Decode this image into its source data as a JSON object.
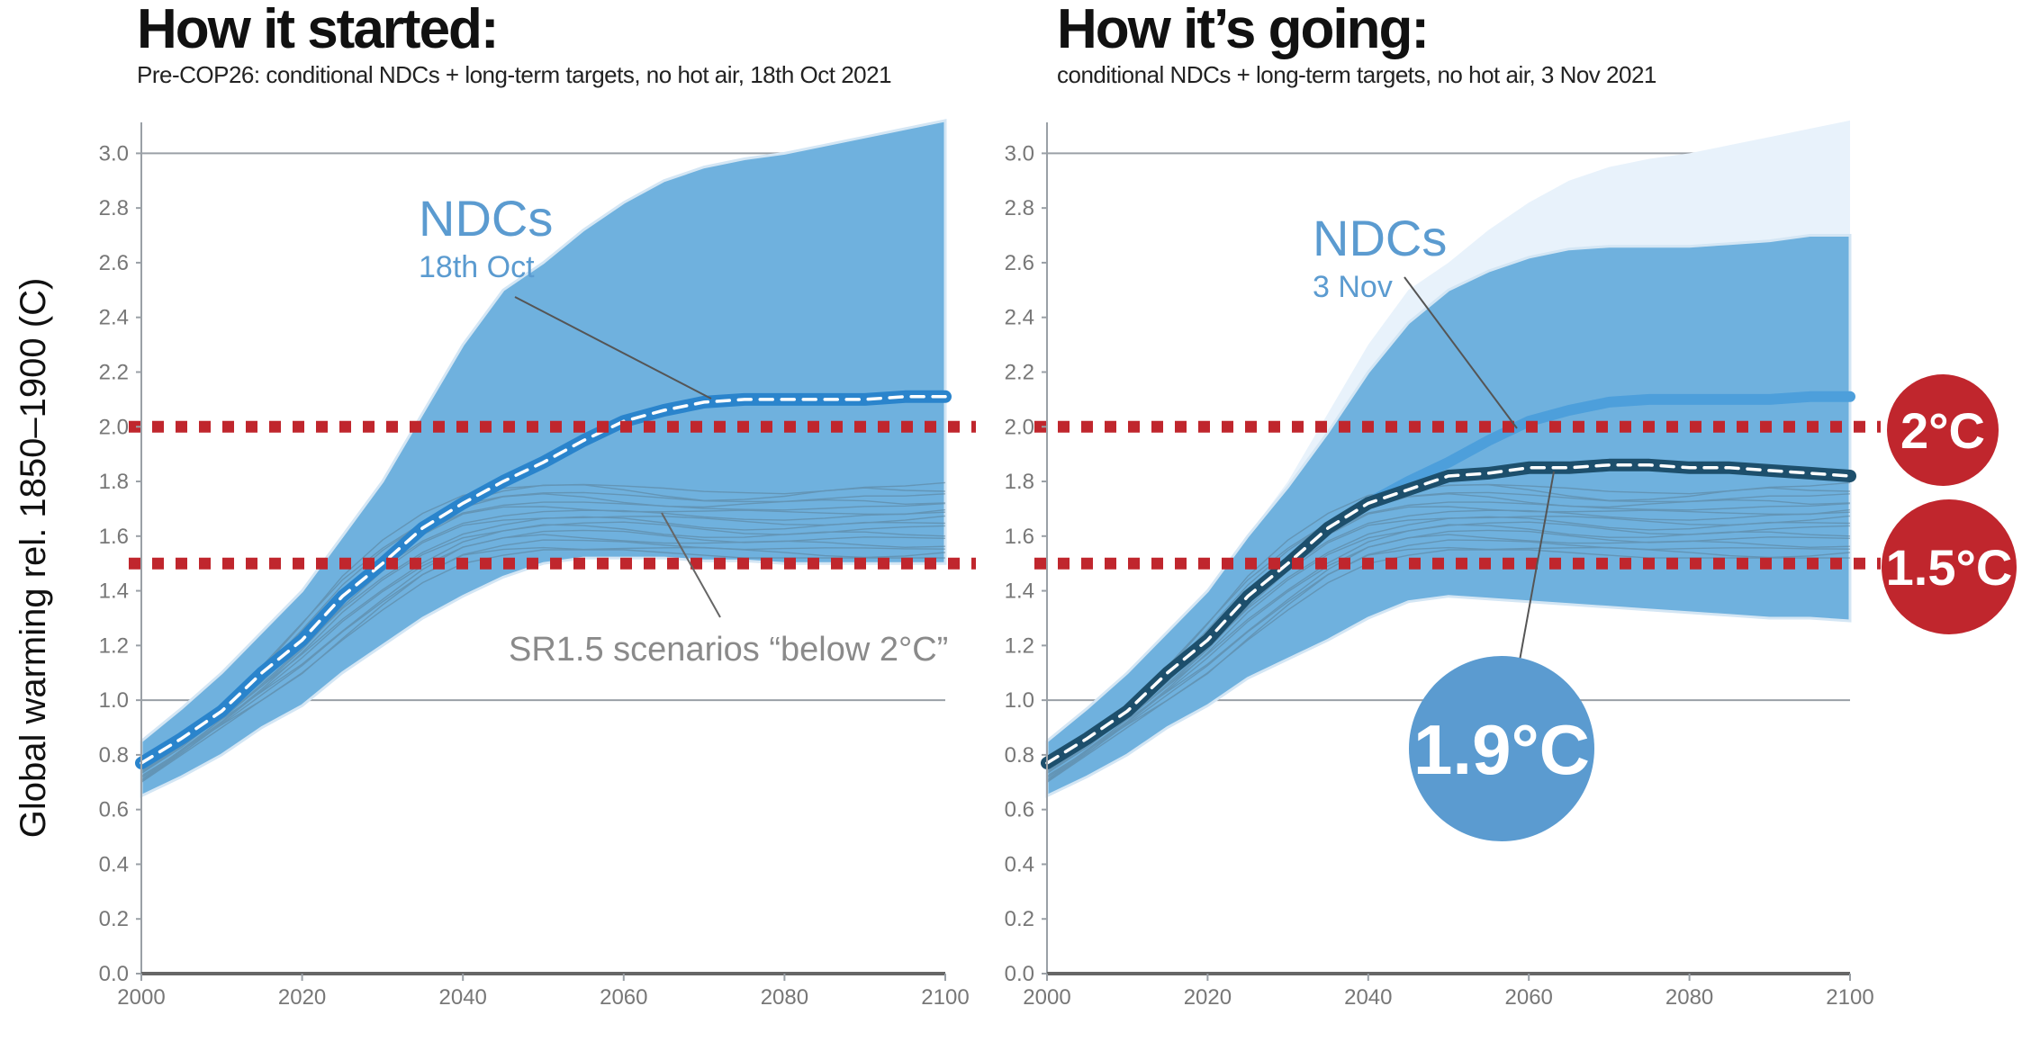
{
  "chart_data": [
    {
      "type": "area",
      "title": "How it started:",
      "subtitle": "Pre-COP26: conditional NDCs + long-term targets, no hot air, 18th Oct 2021",
      "ylabel": "Global warming rel. 1850–1900 (C)",
      "xlim": [
        2000,
        2100
      ],
      "ylim": [
        0,
        3.1
      ],
      "x_ticks": [
        "2000",
        "2020",
        "2040",
        "2060",
        "2080",
        "2100"
      ],
      "y_ticks": [
        "0.0",
        "0.2",
        "0.4",
        "0.6",
        "0.8",
        "1.0",
        "1.2",
        "1.4",
        "1.6",
        "1.8",
        "2.0",
        "2.2",
        "2.4",
        "2.6",
        "2.8",
        "3.0"
      ],
      "x": [
        2000,
        2005,
        2010,
        2015,
        2020,
        2025,
        2030,
        2035,
        2040,
        2045,
        2050,
        2055,
        2060,
        2065,
        2070,
        2075,
        2080,
        2085,
        2090,
        2095,
        2100
      ],
      "ndc_band_upper": [
        0.85,
        0.97,
        1.1,
        1.25,
        1.4,
        1.6,
        1.8,
        2.05,
        2.3,
        2.5,
        2.6,
        2.72,
        2.82,
        2.9,
        2.95,
        2.98,
        3.0,
        3.03,
        3.06,
        3.09,
        3.12
      ],
      "ndc_band_lower": [
        0.65,
        0.72,
        0.8,
        0.9,
        0.98,
        1.1,
        1.2,
        1.3,
        1.38,
        1.45,
        1.5,
        1.52,
        1.52,
        1.52,
        1.51,
        1.51,
        1.5,
        1.5,
        1.5,
        1.5,
        1.5
      ],
      "ndc_median": [
        0.77,
        0.86,
        0.96,
        1.1,
        1.22,
        1.38,
        1.5,
        1.63,
        1.72,
        1.8,
        1.87,
        1.95,
        2.02,
        2.06,
        2.09,
        2.1,
        2.1,
        2.1,
        2.1,
        2.11,
        2.11
      ],
      "sr15_range_upper": [
        0.75,
        0.85,
        0.98,
        1.12,
        1.28,
        1.45,
        1.58,
        1.68,
        1.75,
        1.78,
        1.79,
        1.79,
        1.78,
        1.77,
        1.76,
        1.76,
        1.76,
        1.77,
        1.78,
        1.78,
        1.79
      ],
      "sr15_range_lower": [
        0.7,
        0.8,
        0.9,
        1.0,
        1.1,
        1.22,
        1.33,
        1.43,
        1.5,
        1.53,
        1.55,
        1.55,
        1.55,
        1.54,
        1.53,
        1.52,
        1.52,
        1.52,
        1.52,
        1.52,
        1.52
      ],
      "thresholds": [
        2.0,
        1.5
      ],
      "annotations": {
        "ndc_label": "NDCs",
        "ndc_date": "18th Oct",
        "sr15_label": "SR1.5 scenarios “below 2°C”"
      }
    },
    {
      "type": "area",
      "title": "How it’s going:",
      "subtitle": "conditional NDCs + long-term targets, no hot air, 3 Nov 2021",
      "xlim": [
        2000,
        2100
      ],
      "ylim": [
        0,
        3.1
      ],
      "x_ticks": [
        "2000",
        "2020",
        "2040",
        "2060",
        "2080",
        "2100"
      ],
      "y_ticks": [
        "0.0",
        "0.2",
        "0.4",
        "0.6",
        "0.8",
        "1.0",
        "1.2",
        "1.4",
        "1.6",
        "1.8",
        "2.0",
        "2.2",
        "2.4",
        "2.6",
        "2.8",
        "3.0"
      ],
      "x": [
        2000,
        2005,
        2010,
        2015,
        2020,
        2025,
        2030,
        2035,
        2040,
        2045,
        2050,
        2055,
        2060,
        2065,
        2070,
        2075,
        2080,
        2085,
        2090,
        2095,
        2100
      ],
      "old_band_upper": [
        0.85,
        0.97,
        1.1,
        1.25,
        1.4,
        1.6,
        1.8,
        2.05,
        2.3,
        2.5,
        2.6,
        2.72,
        2.82,
        2.9,
        2.95,
        2.98,
        3.0,
        3.03,
        3.06,
        3.09,
        3.12
      ],
      "old_median": [
        0.77,
        0.86,
        0.96,
        1.1,
        1.22,
        1.38,
        1.5,
        1.63,
        1.72,
        1.8,
        1.87,
        1.95,
        2.02,
        2.06,
        2.09,
        2.1,
        2.1,
        2.1,
        2.1,
        2.11,
        2.11
      ],
      "ndc_band_upper": [
        0.85,
        0.97,
        1.1,
        1.25,
        1.4,
        1.6,
        1.78,
        1.98,
        2.2,
        2.38,
        2.5,
        2.57,
        2.62,
        2.65,
        2.66,
        2.66,
        2.66,
        2.67,
        2.68,
        2.7,
        2.7
      ],
      "ndc_band_lower": [
        0.65,
        0.72,
        0.8,
        0.9,
        0.98,
        1.08,
        1.15,
        1.22,
        1.3,
        1.36,
        1.38,
        1.37,
        1.36,
        1.35,
        1.34,
        1.33,
        1.32,
        1.31,
        1.3,
        1.3,
        1.29
      ],
      "ndc_median": [
        0.77,
        0.86,
        0.96,
        1.1,
        1.22,
        1.38,
        1.5,
        1.63,
        1.72,
        1.77,
        1.82,
        1.83,
        1.85,
        1.85,
        1.86,
        1.86,
        1.85,
        1.85,
        1.84,
        1.83,
        1.82
      ],
      "sr15_range_upper": [
        0.75,
        0.85,
        0.98,
        1.12,
        1.28,
        1.45,
        1.58,
        1.68,
        1.75,
        1.78,
        1.79,
        1.79,
        1.78,
        1.77,
        1.76,
        1.76,
        1.76,
        1.77,
        1.78,
        1.78,
        1.79
      ],
      "sr15_range_lower": [
        0.7,
        0.8,
        0.9,
        1.0,
        1.1,
        1.22,
        1.33,
        1.43,
        1.5,
        1.53,
        1.55,
        1.55,
        1.55,
        1.54,
        1.53,
        1.52,
        1.52,
        1.52,
        1.52,
        1.52,
        1.52
      ],
      "thresholds": [
        2.0,
        1.5
      ],
      "annotations": {
        "ndc_label": "NDCs",
        "ndc_date": "3 Nov",
        "result_badge": "1.9°C",
        "badge_2c": "2°C",
        "badge_15c": "1.5°C"
      }
    }
  ],
  "colors": {
    "band": "#6fb1de",
    "band_light": "#e8f2fb",
    "band_edge": "#d4e6f4",
    "median_old": "#2a84cc",
    "median_new": "#1d4f6c",
    "threshold": "#c0262d",
    "grid": "#9aa0a6",
    "sr15_lines": "#5a7f96",
    "label_blue": "#5b9bd0",
    "label_gray": "#8a8a8a"
  }
}
